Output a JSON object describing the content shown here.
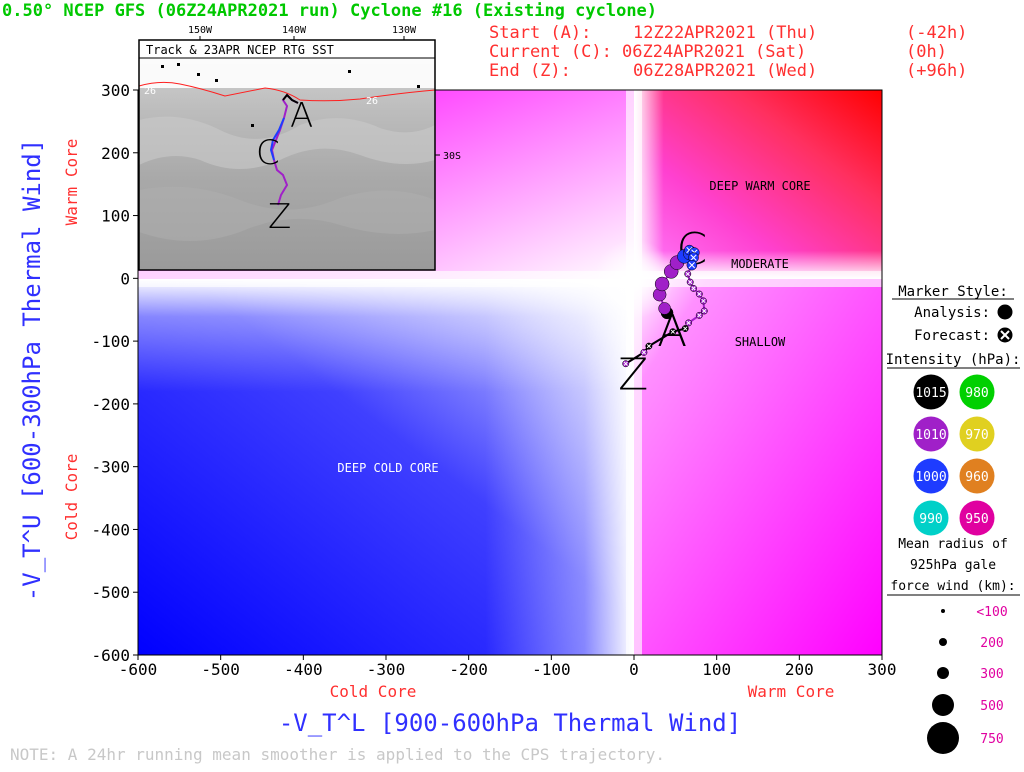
{
  "header": {
    "title": "0.50° NCEP GFS (06Z24APR2021 run) Cyclone #16 (Existing cyclone)",
    "start_label": "Start (A):",
    "start_value": "12Z22APR2021 (Thu)",
    "start_offset": "(-42h)",
    "current_label": "Current (C):",
    "current_value": "06Z24APR2021 (Sat)",
    "current_offset": "(0h)",
    "end_label": "End (Z):",
    "end_value": "06Z28APR2021 (Wed)",
    "end_offset": "(+96h)"
  },
  "colors": {
    "title": "#00c800",
    "header_info": "#ff3030",
    "axis_title": "#3030ff",
    "core_label": "#ff3030",
    "warm": "#ff0000",
    "cold": "#0000ff",
    "shallow": "#ff00ff",
    "note": "#c8c8c8",
    "track": "#000000"
  },
  "inset": {
    "title": "Track & 23APR NCEP RTG SST",
    "lon_labels": [
      "150W",
      "140W",
      "130W"
    ],
    "isotherm_labels": [
      "26",
      "26"
    ],
    "lat_label": "30S",
    "letters": [
      "A",
      "C",
      "Z"
    ]
  },
  "region_labels": {
    "deep_warm": "DEEP WARM CORE",
    "moderate": "MODERATE",
    "shallow": "SHALLOW",
    "deep_cold": "DEEP COLD CORE"
  },
  "y_axis": {
    "title": "-V_T^U [600-300hPa Thermal Wind]",
    "warm_label": "Warm Core",
    "cold_label": "Cold Core",
    "ticks": [
      "300",
      "200",
      "100",
      "0",
      "-100",
      "-200",
      "-300",
      "-400",
      "-500",
      "-600"
    ]
  },
  "x_axis": {
    "title": "-V_T^L [900-600hPa Thermal Wind]",
    "cold_label": "Cold Core",
    "warm_label": "Warm Core",
    "ticks": [
      "-600",
      "-500",
      "-400",
      "-300",
      "-200",
      "-100",
      "0",
      "100",
      "200",
      "300"
    ]
  },
  "legend": {
    "marker_style_title": "Marker Style:",
    "analysis_label": "Analysis:",
    "forecast_label": "Forecast:",
    "intensity_title": "Intensity (hPa):",
    "intensity": [
      {
        "value": "1015",
        "color": "#000000"
      },
      {
        "value": "980",
        "color": "#00d000"
      },
      {
        "value": "1010",
        "color": "#a020c8"
      },
      {
        "value": "970",
        "color": "#e0d020"
      },
      {
        "value": "1000",
        "color": "#1e3cff"
      },
      {
        "value": "960",
        "color": "#e08020"
      },
      {
        "value": "990",
        "color": "#00d0c8"
      },
      {
        "value": "950",
        "color": "#e000a0"
      }
    ],
    "radius_title_1": "Mean radius of",
    "radius_title_2": "925hPa gale",
    "radius_title_3": "force wind (km):",
    "radius": [
      {
        "label": "<100",
        "size": 2
      },
      {
        "label": "200",
        "size": 4
      },
      {
        "label": "300",
        "size": 6
      },
      {
        "label": "500",
        "size": 11
      },
      {
        "label": "750",
        "size": 16
      }
    ]
  },
  "note": "NOTE:  A 24hr running mean smoother is applied to the CPS trajectory.",
  "chart_data": {
    "type": "scatter",
    "xlabel": "-V_T^L [900-600hPa Thermal Wind]",
    "ylabel": "-V_T^U [600-300hPa Thermal Wind]",
    "xlim": [
      -600,
      300
    ],
    "ylim": [
      -600,
      300
    ],
    "series": [
      {
        "name": "Analysis",
        "points": [
          {
            "x": 40,
            "y": -55,
            "color": "#000000"
          },
          {
            "x": 37,
            "y": -48,
            "color": "#a020c8"
          },
          {
            "x": 31,
            "y": -26,
            "color": "#a020c8"
          },
          {
            "x": 34,
            "y": -9,
            "color": "#a020c8"
          },
          {
            "x": 45,
            "y": 11,
            "color": "#a020c8"
          },
          {
            "x": 52,
            "y": 25,
            "color": "#a020c8"
          },
          {
            "x": 61,
            "y": 35,
            "color": "#1e3cff"
          },
          {
            "x": 68,
            "y": 40,
            "color": "#1e3cff"
          }
        ]
      },
      {
        "name": "Forecast",
        "points": [
          {
            "x": 67,
            "y": 45,
            "color": "#1e3cff"
          },
          {
            "x": 73,
            "y": 41,
            "color": "#1e3cff"
          },
          {
            "x": 72,
            "y": 33,
            "color": "#1e3cff"
          },
          {
            "x": 70,
            "y": 21,
            "color": "#1e3cff"
          },
          {
            "x": 65,
            "y": 7,
            "color": "#a020c8"
          },
          {
            "x": 68,
            "y": -6,
            "color": "#a020c8"
          },
          {
            "x": 72,
            "y": -16,
            "color": "#a020c8"
          },
          {
            "x": 79,
            "y": -25,
            "color": "#a020c8"
          },
          {
            "x": 84,
            "y": -36,
            "color": "#a020c8"
          },
          {
            "x": 85,
            "y": -52,
            "color": "#a020c8"
          },
          {
            "x": 79,
            "y": -59,
            "color": "#a020c8"
          },
          {
            "x": 66,
            "y": -71,
            "color": "#a020c8"
          },
          {
            "x": 62,
            "y": -80,
            "color": "#000000"
          },
          {
            "x": 47,
            "y": -85,
            "color": "#000000"
          },
          {
            "x": 18,
            "y": -108,
            "color": "#000000"
          },
          {
            "x": 12,
            "y": -118,
            "color": "#a020c8"
          },
          {
            "x": -10,
            "y": -136,
            "color": "#a020c8"
          }
        ]
      }
    ],
    "start_point": {
      "label": "A",
      "x": 40,
      "y": -60
    },
    "current_point": {
      "label": "C",
      "x": 66,
      "y": 42
    },
    "end_point": {
      "label": "Z",
      "x": -12,
      "y": -136
    },
    "grid": false
  }
}
